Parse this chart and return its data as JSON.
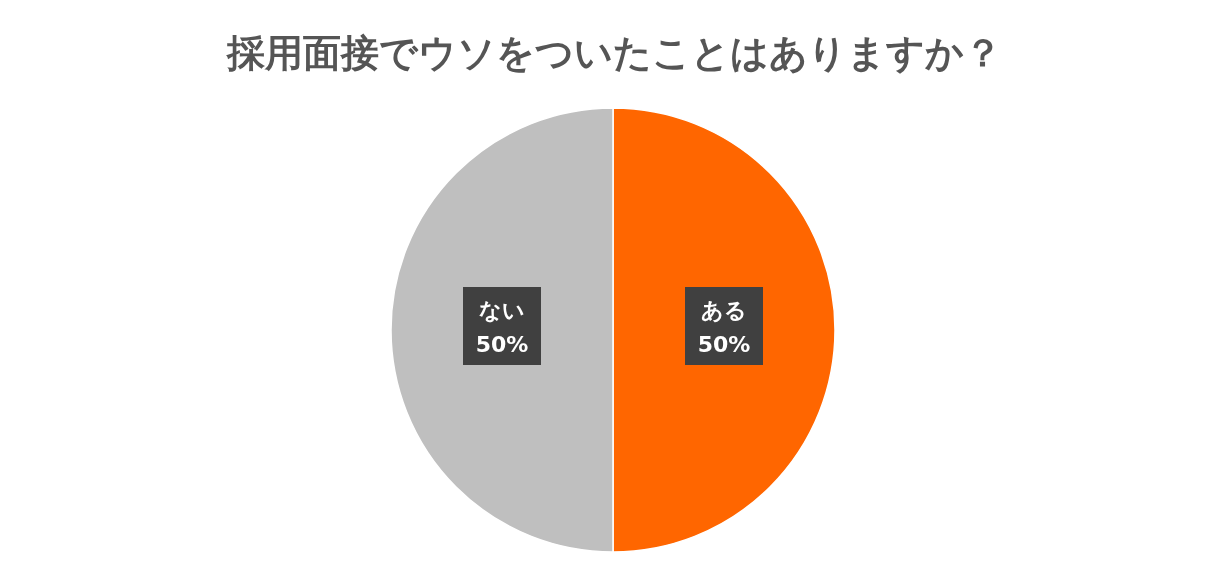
{
  "chart_data": {
    "type": "pie",
    "title": "採用面接でウソをついたことはありますか？",
    "categories": [
      "ある",
      "ない"
    ],
    "values": [
      50,
      50
    ],
    "colors": [
      "#ff6600",
      "#bfbfbf"
    ],
    "value_labels": [
      "50%",
      "50%"
    ]
  }
}
